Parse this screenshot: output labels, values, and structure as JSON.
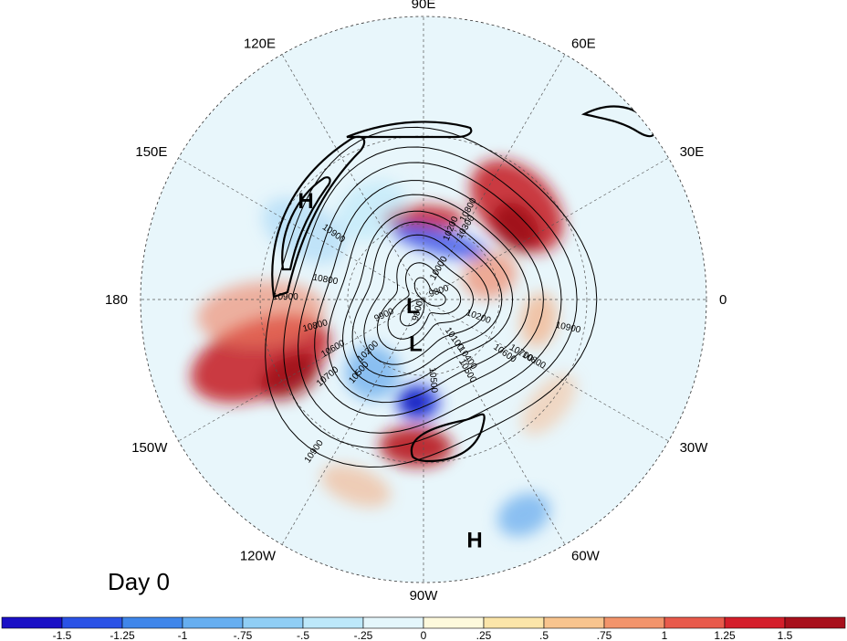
{
  "map": {
    "projection": "north polar stereographic",
    "longitude_labels": [
      "90E",
      "60E",
      "30E",
      "0",
      "30W",
      "60W",
      "90W",
      "120W",
      "150W",
      "180",
      "150E",
      "120E"
    ],
    "pressure_centers": [
      {
        "id": "h-pacific",
        "letter": "H",
        "lon": 140,
        "lat": 33
      },
      {
        "id": "l-arctic",
        "letter": "L",
        "lon": -150,
        "lat": 85
      },
      {
        "id": "l-hudson",
        "letter": "L",
        "lon": -100,
        "lat": 72
      },
      {
        "id": "h-atlantic",
        "letter": "H",
        "lon": -78,
        "lat": 8
      }
    ],
    "contours": [
      {
        "value": "9800",
        "lat": 84
      },
      {
        "value": "9900",
        "lat": 78
      },
      {
        "value": "10000",
        "lat": 73
      },
      {
        "value": "10100",
        "lat": 67
      },
      {
        "value": "10200",
        "lat": 62
      },
      {
        "value": "10300",
        "lat": 58
      },
      {
        "value": "10500",
        "lat": 52
      },
      {
        "value": "10600",
        "lat": 47
      },
      {
        "value": "10700",
        "lat": 41
      },
      {
        "value": "10800",
        "lat": 36
      },
      {
        "value": "10900",
        "lat": 30
      }
    ],
    "contour_label_positions": [
      {
        "value": "10800",
        "lon": 62,
        "lat": 51
      },
      {
        "value": "10300",
        "lon": 58,
        "lat": 57
      },
      {
        "value": "10200",
        "lon": 67,
        "lat": 60
      },
      {
        "value": "10900",
        "lon": 145,
        "lat": 47
      },
      {
        "value": "10800",
        "lon": 170,
        "lat": 51
      },
      {
        "value": "10900",
        "lon": 180,
        "lat": 38
      },
      {
        "value": "9900",
        "lon": -155,
        "lat": 73
      },
      {
        "value": "9800",
        "lon": -105,
        "lat": 85
      },
      {
        "value": "10000",
        "lon": 60,
        "lat": 76
      },
      {
        "value": "9800",
        "lon": 20,
        "lat": 83
      },
      {
        "value": "10600",
        "lon": -35,
        "lat": 52
      },
      {
        "value": "10200",
        "lon": -20,
        "lat": 67
      },
      {
        "value": "10400",
        "lon": -55,
        "lat": 61
      },
      {
        "value": "10100",
        "lon": -55,
        "lat": 70
      },
      {
        "value": "10200",
        "lon": -135,
        "lat": 60
      },
      {
        "value": "10500",
        "lon": -130,
        "lat": 52
      },
      {
        "value": "10600",
        "lon": -150,
        "lat": 50
      },
      {
        "value": "10800",
        "lon": -165,
        "lat": 47
      },
      {
        "value": "10700",
        "lon": -140,
        "lat": 43
      },
      {
        "value": "10500",
        "lon": -60,
        "lat": 57
      },
      {
        "value": "10700",
        "lon": -30,
        "lat": 47
      },
      {
        "value": "10800",
        "lon": -30,
        "lat": 42
      },
      {
        "value": "10900",
        "lon": -12,
        "lat": 35
      },
      {
        "value": "10900",
        "lon": -125,
        "lat": 23
      },
      {
        "value": "10500",
        "lon": -85,
        "lat": 58
      }
    ],
    "anomaly_blobs": [
      {
        "lon": -160,
        "lat": 27,
        "rx": 42,
        "ry": 80,
        "color": "#c4141f",
        "opacity": 0.85
      },
      {
        "lon": -150,
        "lat": 33,
        "rx": 22,
        "ry": 35,
        "color": "#9a0c14",
        "opacity": 0.8
      },
      {
        "lon": -175,
        "lat": 30,
        "rx": 35,
        "ry": 70,
        "color": "#f08060",
        "opacity": 0.6
      },
      {
        "lon": 45,
        "lat": 40,
        "rx": 60,
        "ry": 40,
        "color": "#c4141f",
        "opacity": 0.85
      },
      {
        "lon": 38,
        "lat": 45,
        "rx": 30,
        "ry": 22,
        "color": "#9a0c14",
        "opacity": 0.85
      },
      {
        "lon": 90,
        "lat": 58,
        "rx": 45,
        "ry": 14,
        "color": "#c4141f",
        "opacity": 0.85
      },
      {
        "lon": -93,
        "lat": 35,
        "rx": 40,
        "ry": 22,
        "color": "#b8141c",
        "opacity": 0.9
      },
      {
        "lon": -93,
        "lat": 50,
        "rx": 24,
        "ry": 20,
        "color": "#2c3ce0",
        "opacity": 0.85
      },
      {
        "lon": -95,
        "lat": 50,
        "rx": 14,
        "ry": 12,
        "color": "#0a12b8",
        "opacity": 0.9
      },
      {
        "lon": 75,
        "lat": 66,
        "rx": 55,
        "ry": 14,
        "color": "#3a4ce6",
        "opacity": 0.8
      },
      {
        "lon": -125,
        "lat": 55,
        "rx": 30,
        "ry": 30,
        "color": "#62a8ec",
        "opacity": 0.7
      },
      {
        "lon": -65,
        "lat": 10,
        "rx": 30,
        "ry": 22,
        "color": "#62a8ec",
        "opacity": 0.7
      },
      {
        "lon": -10,
        "lat": 45,
        "rx": 30,
        "ry": 20,
        "color": "#f5a472",
        "opacity": 0.6
      },
      {
        "lon": 20,
        "lat": 62,
        "rx": 25,
        "ry": 30,
        "color": "#f08060",
        "opacity": 0.65
      },
      {
        "lon": 150,
        "lat": 38,
        "rx": 30,
        "ry": 50,
        "color": "#9fd4f6",
        "opacity": 0.55
      },
      {
        "lon": 120,
        "lat": 50,
        "rx": 40,
        "ry": 30,
        "color": "#b3e5f9",
        "opacity": 0.55
      },
      {
        "lon": -40,
        "lat": 30,
        "rx": 40,
        "ry": 20,
        "color": "#f7b88c",
        "opacity": 0.5
      },
      {
        "lon": -110,
        "lat": 20,
        "rx": 40,
        "ry": 20,
        "color": "#f5a472",
        "opacity": 0.5
      }
    ]
  },
  "label": {
    "day": "Day 0"
  },
  "colorbar": {
    "colors": [
      "#1a10c6",
      "#2a52e6",
      "#3f86ea",
      "#66aef0",
      "#90cef5",
      "#bde8fa",
      "#e4f6fb",
      "#fdf9dc",
      "#fbe5a9",
      "#f8c48e",
      "#f2946b",
      "#e85a4b",
      "#d41e2a",
      "#a8101c"
    ],
    "tick_labels": [
      "-1.5",
      "-1.25",
      "-1",
      "-.75",
      "-.5",
      "-.25",
      "0",
      ".25",
      ".5",
      ".75",
      "1",
      "1.25",
      "1.5"
    ]
  }
}
